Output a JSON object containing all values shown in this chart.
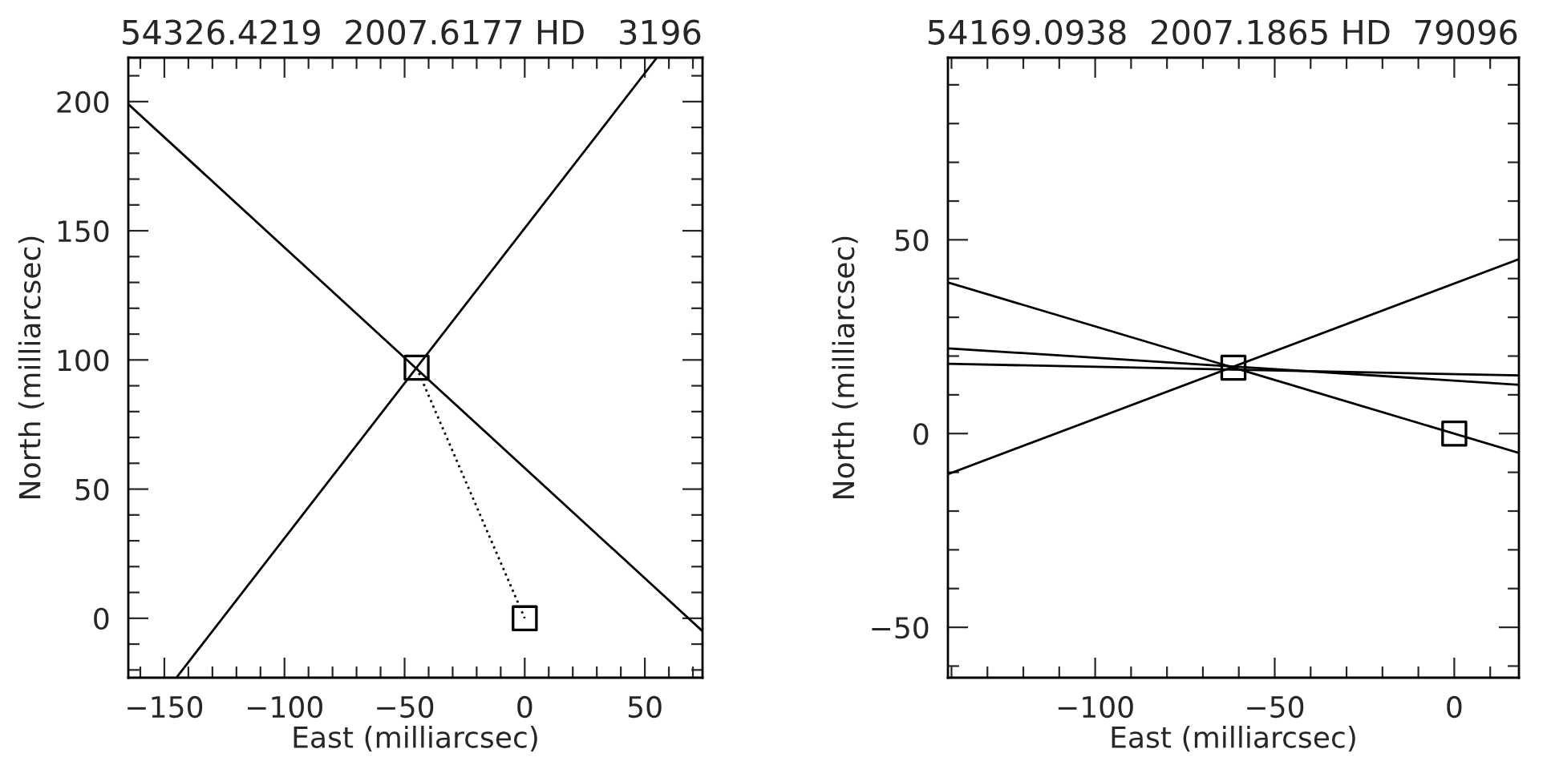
{
  "chart_data": [
    {
      "type": "line",
      "title": "54326.4219  2007.6177 HD   3196",
      "xlabel": "East (milliarcsec)",
      "ylabel": "North (milliarcsec)",
      "xlim": [
        -165,
        74
      ],
      "ylim": [
        -23,
        217
      ],
      "xticks": [
        {
          "value": -160,
          "label": null
        },
        -150,
        {
          "value": -140,
          "label": null
        },
        {
          "value": -130,
          "label": null
        },
        {
          "value": -120,
          "label": null
        },
        {
          "value": -110,
          "label": null
        },
        -100,
        {
          "value": -90,
          "label": null
        },
        {
          "value": -80,
          "label": null
        },
        {
          "value": -70,
          "label": null
        },
        {
          "value": -60,
          "label": null
        },
        -50,
        {
          "value": -40,
          "label": null
        },
        {
          "value": -30,
          "label": null
        },
        {
          "value": -20,
          "label": null
        },
        {
          "value": -10,
          "label": null
        },
        0,
        {
          "value": 10,
          "label": null
        },
        {
          "value": 20,
          "label": null
        },
        {
          "value": 30,
          "label": null
        },
        {
          "value": 40,
          "label": null
        },
        50,
        {
          "value": 60,
          "label": null
        },
        {
          "value": 70,
          "label": null
        }
      ],
      "yticks": [
        {
          "value": -20,
          "label": null
        },
        {
          "value": -10,
          "label": null
        },
        0,
        {
          "value": 10,
          "label": null
        },
        {
          "value": 20,
          "label": null
        },
        {
          "value": 30,
          "label": null
        },
        {
          "value": 40,
          "label": null
        },
        50,
        {
          "value": 60,
          "label": null
        },
        {
          "value": 70,
          "label": null
        },
        {
          "value": 80,
          "label": null
        },
        {
          "value": 90,
          "label": null
        },
        100,
        {
          "value": 110,
          "label": null
        },
        {
          "value": 120,
          "label": null
        },
        {
          "value": 130,
          "label": null
        },
        {
          "value": 140,
          "label": null
        },
        150,
        {
          "value": 160,
          "label": null
        },
        {
          "value": 170,
          "label": null
        },
        {
          "value": 180,
          "label": null
        },
        {
          "value": 190,
          "label": null
        },
        200,
        {
          "value": 210,
          "label": null
        }
      ],
      "grid": false,
      "series": [
        {
          "color": "#000000",
          "line_style": "solid",
          "x": [
            -165,
            74
          ],
          "values": [
            199,
            -5
          ]
        },
        {
          "color": "#000000",
          "line_style": "solid",
          "x": [
            -145,
            55
          ],
          "values": [
            -23,
            217
          ]
        },
        {
          "color": "#000000",
          "line_style": "dotted",
          "x": [
            -45,
            0
          ],
          "values": [
            97,
            0
          ]
        },
        {
          "type": "scatter",
          "color": "#000000",
          "marker": "square",
          "x": [
            -45,
            0
          ],
          "values": [
            97,
            0
          ]
        }
      ]
    },
    {
      "type": "line",
      "title": "54169.0938  2007.1865 HD  79096",
      "xlabel": "East (milliarcsec)",
      "ylabel": "North (milliarcsec)",
      "xlim": [
        -141,
        18
      ],
      "ylim": [
        -63,
        97
      ],
      "xticks": [
        {
          "value": -140,
          "label": null
        },
        {
          "value": -130,
          "label": null
        },
        {
          "value": -120,
          "label": null
        },
        {
          "value": -110,
          "label": null
        },
        -100,
        {
          "value": -90,
          "label": null
        },
        {
          "value": -80,
          "label": null
        },
        {
          "value": -70,
          "label": null
        },
        {
          "value": -60,
          "label": null
        },
        -50,
        {
          "value": -40,
          "label": null
        },
        {
          "value": -30,
          "label": null
        },
        {
          "value": -20,
          "label": null
        },
        {
          "value": -10,
          "label": null
        },
        0,
        {
          "value": 10,
          "label": null
        }
      ],
      "yticks": [
        {
          "value": -60,
          "label": null
        },
        -50,
        {
          "value": -40,
          "label": null
        },
        {
          "value": -30,
          "label": null
        },
        {
          "value": -20,
          "label": null
        },
        {
          "value": -10,
          "label": null
        },
        0,
        {
          "value": 10,
          "label": null
        },
        {
          "value": 20,
          "label": null
        },
        {
          "value": 30,
          "label": null
        },
        {
          "value": 40,
          "label": null
        },
        50,
        {
          "value": 60,
          "label": null
        },
        {
          "value": 70,
          "label": null
        },
        {
          "value": 80,
          "label": null
        },
        {
          "value": 90,
          "label": null
        }
      ],
      "grid": false,
      "series": [
        {
          "color": "#000000",
          "line_style": "solid",
          "x": [
            -141,
            18
          ],
          "values": [
            39,
            -5
          ]
        },
        {
          "color": "#000000",
          "line_style": "solid",
          "x": [
            -141,
            18
          ],
          "values": [
            -10.5,
            45
          ]
        },
        {
          "color": "#000000",
          "line_style": "solid",
          "x": [
            -141,
            18
          ],
          "values": [
            22,
            12.6
          ]
        },
        {
          "color": "#000000",
          "line_style": "solid",
          "x": [
            -141,
            18
          ],
          "values": [
            18,
            15
          ]
        },
        {
          "type": "scatter",
          "color": "#000000",
          "marker": "square",
          "x": [
            -61.5,
            0
          ],
          "values": [
            17,
            0
          ]
        }
      ]
    }
  ]
}
